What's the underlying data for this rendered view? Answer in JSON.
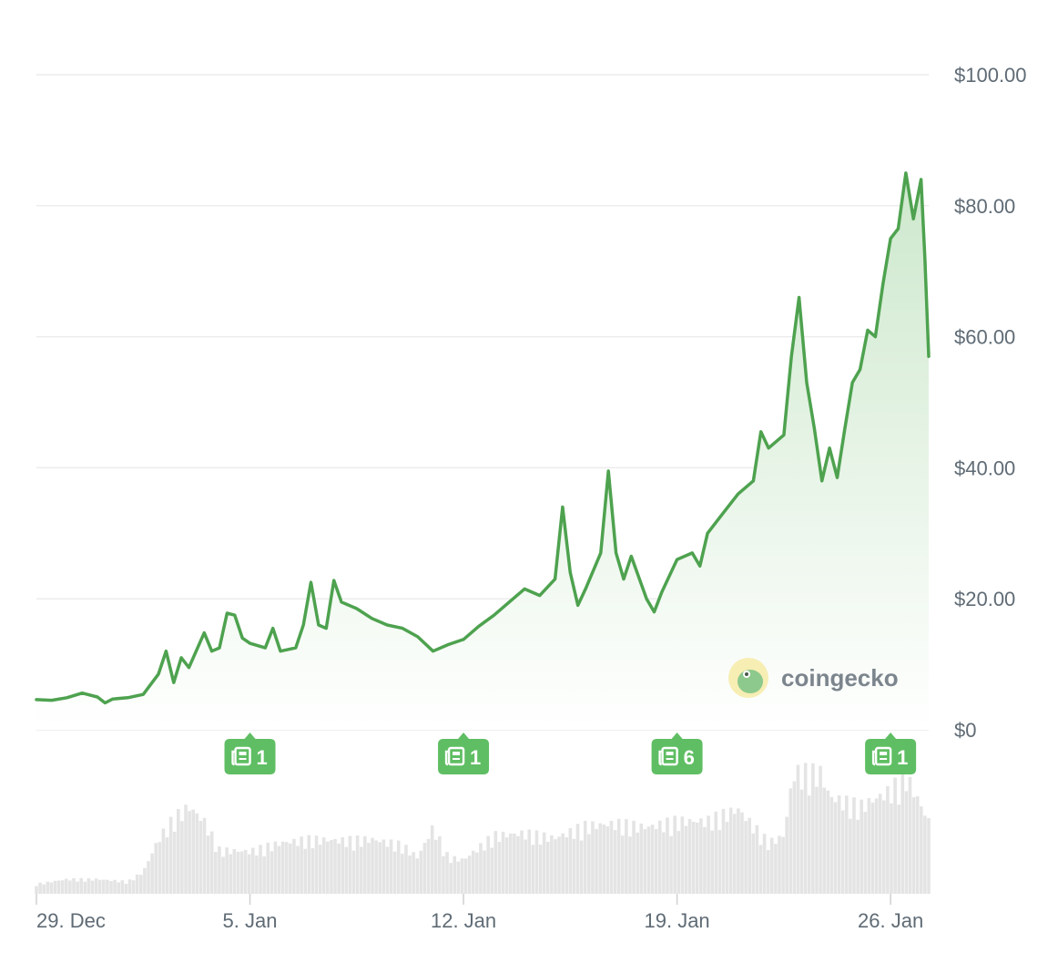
{
  "colors": {
    "line": "#4ea24f",
    "area_top": "#cde8cc",
    "area_bottom": "#ffffff",
    "volume": "#e4e4e4",
    "news": "#5fbe63",
    "grid": "#ececec",
    "tick_text": "#5f6b75",
    "brand_text": "#7c858d"
  },
  "brand": {
    "name": "coingecko",
    "icon": "gecko-logo-icon"
  },
  "news_flags": [
    {
      "date": "2025-01-05",
      "count": "1",
      "icon": "newspaper-icon"
    },
    {
      "date": "2025-01-12",
      "count": "1",
      "icon": "newspaper-icon"
    },
    {
      "date": "2025-01-19",
      "count": "6",
      "icon": "newspaper-icon"
    },
    {
      "date": "2025-01-26",
      "count": "1",
      "icon": "newspaper-icon"
    }
  ],
  "chart_data": {
    "type": "line",
    "title": "",
    "xlabel": "",
    "ylabel": "",
    "ylim": [
      0,
      100
    ],
    "y_ticks": [
      {
        "value": 0,
        "label": "$0"
      },
      {
        "value": 20,
        "label": "$20.00"
      },
      {
        "value": 40,
        "label": "$40.00"
      },
      {
        "value": 60,
        "label": "$60.00"
      },
      {
        "value": 80,
        "label": "$80.00"
      },
      {
        "value": 100,
        "label": "$100.00"
      }
    ],
    "xlim": [
      "2024-12-29",
      "2025-01-27 06:00"
    ],
    "x_ticks": [
      {
        "date": "2024-12-29",
        "label": "29. Dec"
      },
      {
        "date": "2025-01-05",
        "label": "5. Jan"
      },
      {
        "date": "2025-01-12",
        "label": "12. Jan"
      },
      {
        "date": "2025-01-19",
        "label": "19. Jan"
      },
      {
        "date": "2025-01-26",
        "label": "26. Jan"
      }
    ],
    "grid": true,
    "y_axis_position": "right",
    "series": [
      {
        "values": [
          [
            "2024-12-29 00:00",
            4.6
          ],
          [
            "2024-12-29 12:00",
            4.5
          ],
          [
            "2024-12-30 00:00",
            4.9
          ],
          [
            "2024-12-30 12:00",
            5.6
          ],
          [
            "2024-12-31 00:00",
            5.0
          ],
          [
            "2024-12-31 06:00",
            4.1
          ],
          [
            "2024-12-31 12:00",
            4.7
          ],
          [
            "2025-01-01 00:00",
            4.9
          ],
          [
            "2025-01-01 12:00",
            5.4
          ],
          [
            "2025-01-02 00:00",
            8.5
          ],
          [
            "2025-01-02 06:00",
            12.0
          ],
          [
            "2025-01-02 12:00",
            7.2
          ],
          [
            "2025-01-02 18:00",
            11.0
          ],
          [
            "2025-01-03 00:00",
            9.5
          ],
          [
            "2025-01-03 12:00",
            14.8
          ],
          [
            "2025-01-03 18:00",
            12.0
          ],
          [
            "2025-01-04 00:00",
            12.5
          ],
          [
            "2025-01-04 06:00",
            17.8
          ],
          [
            "2025-01-04 12:00",
            17.5
          ],
          [
            "2025-01-04 18:00",
            14.0
          ],
          [
            "2025-01-05 00:00",
            13.2
          ],
          [
            "2025-01-05 12:00",
            12.5
          ],
          [
            "2025-01-05 18:00",
            15.5
          ],
          [
            "2025-01-06 00:00",
            12.0
          ],
          [
            "2025-01-06 12:00",
            12.5
          ],
          [
            "2025-01-06 18:00",
            16.0
          ],
          [
            "2025-01-07 00:00",
            22.5
          ],
          [
            "2025-01-07 06:00",
            16.0
          ],
          [
            "2025-01-07 12:00",
            15.5
          ],
          [
            "2025-01-07 18:00",
            22.8
          ],
          [
            "2025-01-08 00:00",
            19.5
          ],
          [
            "2025-01-08 12:00",
            18.5
          ],
          [
            "2025-01-09 00:00",
            17.0
          ],
          [
            "2025-01-09 12:00",
            16.0
          ],
          [
            "2025-01-10 00:00",
            15.5
          ],
          [
            "2025-01-10 12:00",
            14.2
          ],
          [
            "2025-01-11 00:00",
            12.0
          ],
          [
            "2025-01-11 12:00",
            13.0
          ],
          [
            "2025-01-12 00:00",
            13.8
          ],
          [
            "2025-01-12 12:00",
            15.8
          ],
          [
            "2025-01-13 00:00",
            17.5
          ],
          [
            "2025-01-13 12:00",
            19.5
          ],
          [
            "2025-01-14 00:00",
            21.5
          ],
          [
            "2025-01-14 12:00",
            20.5
          ],
          [
            "2025-01-15 00:00",
            23.0
          ],
          [
            "2025-01-15 06:00",
            34.0
          ],
          [
            "2025-01-15 12:00",
            24.0
          ],
          [
            "2025-01-15 18:00",
            19.0
          ],
          [
            "2025-01-16 00:00",
            21.5
          ],
          [
            "2025-01-16 12:00",
            27.0
          ],
          [
            "2025-01-16 18:00",
            39.5
          ],
          [
            "2025-01-17 00:00",
            27.0
          ],
          [
            "2025-01-17 06:00",
            23.0
          ],
          [
            "2025-01-17 12:00",
            26.5
          ],
          [
            "2025-01-18 00:00",
            20.0
          ],
          [
            "2025-01-18 06:00",
            18.0
          ],
          [
            "2025-01-18 12:00",
            21.0
          ],
          [
            "2025-01-19 00:00",
            26.0
          ],
          [
            "2025-01-19 12:00",
            27.0
          ],
          [
            "2025-01-19 18:00",
            25.0
          ],
          [
            "2025-01-20 00:00",
            30.0
          ],
          [
            "2025-01-20 12:00",
            33.0
          ],
          [
            "2025-01-21 00:00",
            36.0
          ],
          [
            "2025-01-21 12:00",
            38.0
          ],
          [
            "2025-01-21 18:00",
            45.5
          ],
          [
            "2025-01-22 00:00",
            43.0
          ],
          [
            "2025-01-22 12:00",
            45.0
          ],
          [
            "2025-01-22 18:00",
            57.0
          ],
          [
            "2025-01-23 00:00",
            66.0
          ],
          [
            "2025-01-23 06:00",
            53.0
          ],
          [
            "2025-01-23 12:00",
            46.0
          ],
          [
            "2025-01-23 18:00",
            38.0
          ],
          [
            "2025-01-24 00:00",
            43.0
          ],
          [
            "2025-01-24 06:00",
            38.5
          ],
          [
            "2025-01-24 12:00",
            46.0
          ],
          [
            "2025-01-24 18:00",
            53.0
          ],
          [
            "2025-01-25 00:00",
            55.0
          ],
          [
            "2025-01-25 06:00",
            61.0
          ],
          [
            "2025-01-25 12:00",
            60.0
          ],
          [
            "2025-01-25 18:00",
            68.0
          ],
          [
            "2025-01-26 00:00",
            75.0
          ],
          [
            "2025-01-26 06:00",
            76.5
          ],
          [
            "2025-01-26 12:00",
            85.0
          ],
          [
            "2025-01-26 18:00",
            78.0
          ],
          [
            "2025-01-27 00:00",
            84.0
          ],
          [
            "2025-01-27 03:00",
            72.0
          ],
          [
            "2025-01-27 06:00",
            57.0
          ]
        ]
      }
    ],
    "volume": [
      [
        "2024-12-29 00:00",
        0.08
      ],
      [
        "2024-12-30 00:00",
        0.12
      ],
      [
        "2024-12-31 00:00",
        0.12
      ],
      [
        "2025-01-01 00:00",
        0.1
      ],
      [
        "2025-01-01 12:00",
        0.18
      ],
      [
        "2025-01-02 00:00",
        0.45
      ],
      [
        "2025-01-02 12:00",
        0.62
      ],
      [
        "2025-01-03 00:00",
        0.72
      ],
      [
        "2025-01-03 12:00",
        0.6
      ],
      [
        "2025-01-04 00:00",
        0.36
      ],
      [
        "2025-01-05 00:00",
        0.35
      ],
      [
        "2025-01-06 00:00",
        0.42
      ],
      [
        "2025-01-07 00:00",
        0.45
      ],
      [
        "2025-01-08 00:00",
        0.44
      ],
      [
        "2025-01-09 00:00",
        0.45
      ],
      [
        "2025-01-10 00:00",
        0.4
      ],
      [
        "2025-01-10 12:00",
        0.3
      ],
      [
        "2025-01-11 00:00",
        0.55
      ],
      [
        "2025-01-11 12:00",
        0.3
      ],
      [
        "2025-01-12 00:00",
        0.28
      ],
      [
        "2025-01-13 00:00",
        0.48
      ],
      [
        "2025-01-14 00:00",
        0.5
      ],
      [
        "2025-01-15 00:00",
        0.46
      ],
      [
        "2025-01-16 00:00",
        0.56
      ],
      [
        "2025-01-17 00:00",
        0.58
      ],
      [
        "2025-01-18 00:00",
        0.55
      ],
      [
        "2025-01-19 00:00",
        0.6
      ],
      [
        "2025-01-20 00:00",
        0.6
      ],
      [
        "2025-01-21 00:00",
        0.7
      ],
      [
        "2025-01-22 00:00",
        0.42
      ],
      [
        "2025-01-22 12:00",
        0.48
      ],
      [
        "2025-01-23 00:00",
        1.3
      ],
      [
        "2025-01-23 12:00",
        1.15
      ],
      [
        "2025-01-24 00:00",
        0.8
      ],
      [
        "2025-01-25 00:00",
        0.72
      ],
      [
        "2025-01-26 00:00",
        0.85
      ],
      [
        "2025-01-26 12:00",
        0.98
      ],
      [
        "2025-01-27 06:00",
        0.6
      ]
    ]
  }
}
